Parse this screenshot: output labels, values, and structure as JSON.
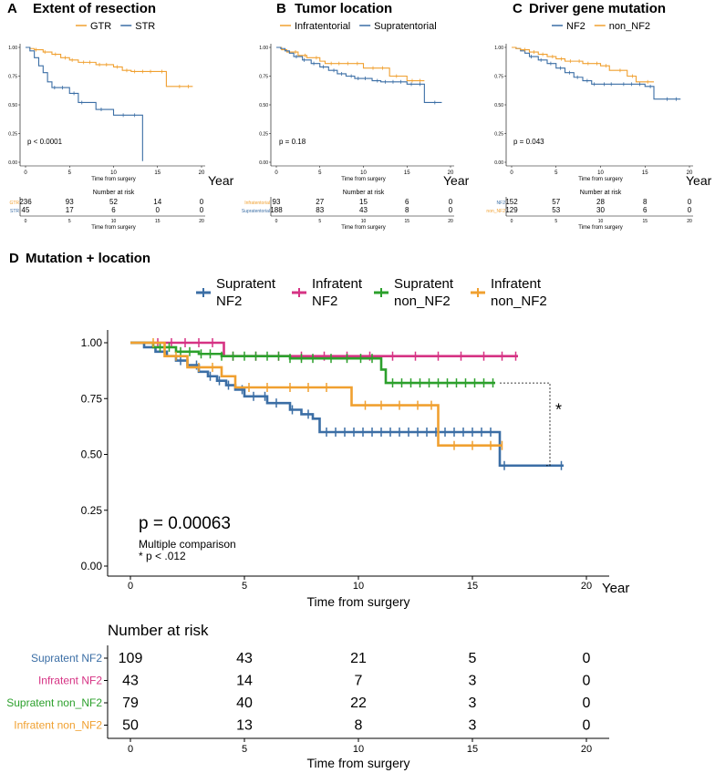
{
  "colors": {
    "blue": "#3b6ea5",
    "orange": "#f0a030",
    "pink": "#d63384",
    "green": "#2ca02c",
    "grid": "#000000"
  },
  "chart_data": [
    {
      "id": "A",
      "type": "line",
      "panel_letter": "A",
      "title": "Extent of resection",
      "xlabel": "Time from surgery",
      "x_unit": "Year",
      "ylabel": "",
      "xlim": [
        0,
        20
      ],
      "ylim": [
        0,
        1
      ],
      "xticks": [
        "0",
        "5",
        "10",
        "15",
        "20"
      ],
      "yticks": [
        "0.00",
        "0.25",
        "0.50",
        "0.75",
        "1.00"
      ],
      "pvalue": "p < 0.0001",
      "legend": [
        "GTR",
        "STR"
      ],
      "series": [
        {
          "name": "GTR",
          "color": "#f0a030",
          "steps": [
            [
              0,
              1
            ],
            [
              0.5,
              0.99
            ],
            [
              1,
              0.98
            ],
            [
              2,
              0.96
            ],
            [
              3,
              0.94
            ],
            [
              4,
              0.91
            ],
            [
              5,
              0.89
            ],
            [
              6,
              0.87
            ],
            [
              8,
              0.85
            ],
            [
              10,
              0.83
            ],
            [
              11,
              0.8
            ],
            [
              12,
              0.79
            ],
            [
              16,
              0.66
            ],
            [
              19,
              0.66
            ]
          ],
          "censors": [
            1.2,
            2.2,
            3.4,
            4.5,
            5.3,
            6.6,
            7.3,
            8.4,
            9.2,
            10.4,
            11.5,
            12.4,
            13.3,
            14.2,
            15.5,
            17.5,
            18.5
          ]
        },
        {
          "name": "STR",
          "color": "#3b6ea5",
          "steps": [
            [
              0,
              1
            ],
            [
              0.5,
              0.97
            ],
            [
              1,
              0.91
            ],
            [
              1.5,
              0.84
            ],
            [
              2,
              0.78
            ],
            [
              2.5,
              0.7
            ],
            [
              3,
              0.65
            ],
            [
              5,
              0.6
            ],
            [
              6,
              0.52
            ],
            [
              8,
              0.46
            ],
            [
              10,
              0.41
            ],
            [
              13.3,
              0.01
            ]
          ],
          "censors": [
            3.3,
            4.2,
            5.5,
            6.4,
            8.6,
            11.1,
            12.4
          ]
        }
      ],
      "risk_title": "Number at risk",
      "risk_xlabel": "Time from surgery",
      "risk_table": [
        {
          "label": "GTR",
          "color": "#f0a030",
          "values": [
            "236",
            "93",
            "52",
            "14",
            "0"
          ]
        },
        {
          "label": "STR",
          "color": "#3b6ea5",
          "values": [
            "45",
            "17",
            "6",
            "0",
            "0"
          ]
        }
      ]
    },
    {
      "id": "B",
      "type": "line",
      "panel_letter": "B",
      "title": "Tumor location",
      "xlabel": "Time from surgery",
      "x_unit": "Year",
      "ylabel": "",
      "xlim": [
        0,
        20
      ],
      "ylim": [
        0,
        1
      ],
      "xticks": [
        "0",
        "5",
        "10",
        "15",
        "20"
      ],
      "yticks": [
        "0.00",
        "0.25",
        "0.50",
        "0.75",
        "1.00"
      ],
      "pvalue": "p = 0.18",
      "legend": [
        "Infratentorial",
        "Supratentorial"
      ],
      "series": [
        {
          "name": "Infratentorial",
          "color": "#f0a030",
          "steps": [
            [
              0,
              1
            ],
            [
              0.6,
              0.98
            ],
            [
              1.2,
              0.96
            ],
            [
              2.5,
              0.93
            ],
            [
              3.5,
              0.91
            ],
            [
              5,
              0.88
            ],
            [
              5.6,
              0.86
            ],
            [
              10,
              0.82
            ],
            [
              13,
              0.75
            ],
            [
              15,
              0.71
            ],
            [
              17,
              0.71
            ]
          ],
          "censors": [
            2.2,
            3.3,
            4.6,
            6.3,
            7.2,
            8.2,
            9.3,
            11.1,
            12.2,
            13.8,
            15.6,
            16.5
          ]
        },
        {
          "name": "Supratentorial",
          "color": "#3b6ea5",
          "steps": [
            [
              0,
              1
            ],
            [
              0.5,
              0.99
            ],
            [
              1,
              0.97
            ],
            [
              1.5,
              0.95
            ],
            [
              2,
              0.92
            ],
            [
              3,
              0.89
            ],
            [
              4,
              0.86
            ],
            [
              5,
              0.83
            ],
            [
              6,
              0.8
            ],
            [
              7,
              0.77
            ],
            [
              8,
              0.75
            ],
            [
              9,
              0.73
            ],
            [
              11,
              0.71
            ],
            [
              12,
              0.7
            ],
            [
              15,
              0.68
            ],
            [
              17,
              0.52
            ],
            [
              19,
              0.52
            ]
          ],
          "censors": [
            2.3,
            3.2,
            4.3,
            5.4,
            6.6,
            7.5,
            8.6,
            9.4,
            10.2,
            11.6,
            12.5,
            13.4,
            14.3,
            15.5,
            16.5,
            18.2
          ]
        }
      ],
      "risk_title": "Number at risk",
      "risk_xlabel": "Time from surgery",
      "risk_table": [
        {
          "label": "Infratentorial",
          "color": "#f0a030",
          "values": [
            "93",
            "27",
            "15",
            "6",
            "0"
          ]
        },
        {
          "label": "Supratentorial",
          "color": "#3b6ea5",
          "values": [
            "188",
            "83",
            "43",
            "8",
            "0"
          ]
        }
      ]
    },
    {
      "id": "C",
      "type": "line",
      "panel_letter": "C",
      "title": "Driver gene mutation",
      "xlabel": "Time from surgery",
      "x_unit": "Year",
      "ylabel": "",
      "xlim": [
        0,
        20
      ],
      "ylim": [
        0,
        1
      ],
      "xticks": [
        "0",
        "5",
        "10",
        "15",
        "20"
      ],
      "yticks": [
        "0.00",
        "0.25",
        "0.50",
        "0.75",
        "1.00"
      ],
      "pvalue": "p = 0.043",
      "legend": [
        "NF2",
        "non_NF2"
      ],
      "series": [
        {
          "name": "NF2",
          "color": "#3b6ea5",
          "steps": [
            [
              0,
              1
            ],
            [
              0.5,
              0.99
            ],
            [
              1,
              0.97
            ],
            [
              1.5,
              0.95
            ],
            [
              2,
              0.92
            ],
            [
              3,
              0.89
            ],
            [
              4,
              0.86
            ],
            [
              5,
              0.82
            ],
            [
              6,
              0.78
            ],
            [
              7,
              0.74
            ],
            [
              8,
              0.71
            ],
            [
              9,
              0.68
            ],
            [
              15,
              0.66
            ],
            [
              16,
              0.55
            ],
            [
              19,
              0.55
            ]
          ],
          "censors": [
            2.2,
            3.3,
            4.4,
            5.5,
            6.5,
            7.4,
            8.5,
            9.3,
            10.4,
            11.2,
            12.6,
            13.5,
            14.4,
            15.6,
            17.5,
            18.5
          ]
        },
        {
          "name": "non_NF2",
          "color": "#f0a030",
          "steps": [
            [
              0,
              1
            ],
            [
              0.5,
              0.99
            ],
            [
              1,
              0.98
            ],
            [
              2,
              0.96
            ],
            [
              3,
              0.94
            ],
            [
              4,
              0.92
            ],
            [
              5,
              0.9
            ],
            [
              6,
              0.88
            ],
            [
              8,
              0.86
            ],
            [
              10,
              0.84
            ],
            [
              11,
              0.8
            ],
            [
              13,
              0.75
            ],
            [
              14,
              0.7
            ],
            [
              16,
              0.7
            ]
          ],
          "censors": [
            1.5,
            2.5,
            3.5,
            4.6,
            5.6,
            6.6,
            7.6,
            8.6,
            9.6,
            10.6,
            12.2,
            13.6,
            15.3
          ]
        }
      ],
      "risk_title": "Number at risk",
      "risk_xlabel": "Time from surgery",
      "risk_table": [
        {
          "label": "NF2",
          "color": "#3b6ea5",
          "values": [
            "152",
            "57",
            "28",
            "8",
            "0"
          ]
        },
        {
          "label": "non_NF2",
          "color": "#f0a030",
          "values": [
            "129",
            "53",
            "30",
            "6",
            "0"
          ]
        }
      ]
    },
    {
      "id": "D",
      "type": "line",
      "panel_letter": "D",
      "title": "Mutation + location",
      "xlabel": "Time from surgery",
      "x_unit": "Year",
      "ylabel": "",
      "xlim": [
        0,
        20
      ],
      "ylim": [
        0,
        1
      ],
      "xticks": [
        "0",
        "5",
        "10",
        "15",
        "20"
      ],
      "yticks": [
        "0.00",
        "0.25",
        "0.50",
        "0.75",
        "1.00"
      ],
      "pvalue": "p = 0.00063",
      "note_title": "Multiple comparison",
      "note_detail": "* p < .012",
      "significance_marker": "*",
      "legend": [
        "Supratent NF2",
        "Infratent NF2",
        "Supratent non_NF2",
        "Infratent non_NF2"
      ],
      "series": [
        {
          "name": "Supratent NF2",
          "legend_line1": "Supratent",
          "legend_line2": "NF2",
          "color": "#3b6ea5",
          "steps": [
            [
              0,
              1
            ],
            [
              0.6,
              0.98
            ],
            [
              1.1,
              0.96
            ],
            [
              1.6,
              0.94
            ],
            [
              2,
              0.92
            ],
            [
              2.5,
              0.9
            ],
            [
              3,
              0.87
            ],
            [
              3.4,
              0.85
            ],
            [
              3.8,
              0.83
            ],
            [
              4.2,
              0.81
            ],
            [
              4.6,
              0.79
            ],
            [
              5,
              0.76
            ],
            [
              6,
              0.73
            ],
            [
              7,
              0.7
            ],
            [
              7.5,
              0.68
            ],
            [
              8,
              0.66
            ],
            [
              8.3,
              0.6
            ],
            [
              16.2,
              0.45
            ],
            [
              19,
              0.45
            ]
          ],
          "censors": [
            1.5,
            2.2,
            2.9,
            3.5,
            3.9,
            4.3,
            4.9,
            5.4,
            5.9,
            6.4,
            7.1,
            7.8,
            8.6,
            9.0,
            9.4,
            9.8,
            10.2,
            10.6,
            11.0,
            11.4,
            11.8,
            12.2,
            12.6,
            13.0,
            13.4,
            13.8,
            14.2,
            14.6,
            15.0,
            15.4,
            15.8,
            16.4,
            18.9
          ]
        },
        {
          "name": "Infratent NF2",
          "legend_line1": "Infratent",
          "legend_line2": "NF2",
          "color": "#d63384",
          "steps": [
            [
              0,
              1
            ],
            [
              4.1,
              0.94
            ],
            [
              17,
              0.94
            ]
          ],
          "censors": [
            1.2,
            1.8,
            2.4,
            3.0,
            3.6,
            4.5,
            5.5,
            6.5,
            7.5,
            8.5,
            9.5,
            10.5,
            11.5,
            12.5,
            13.5,
            14.5,
            15.5,
            16.3,
            16.9
          ]
        },
        {
          "name": "Supratent non_NF2",
          "legend_line1": "Supratent",
          "legend_line2": "non_NF2",
          "color": "#2ca02c",
          "steps": [
            [
              0,
              1
            ],
            [
              1,
              0.98
            ],
            [
              2,
              0.96
            ],
            [
              3,
              0.95
            ],
            [
              4,
              0.94
            ],
            [
              7,
              0.93
            ],
            [
              8.5,
              0.93
            ],
            [
              11,
              0.88
            ],
            [
              11.2,
              0.82
            ],
            [
              16,
              0.82
            ]
          ],
          "censors": [
            1.3,
            1.7,
            2.2,
            2.6,
            3.1,
            3.5,
            4.0,
            4.5,
            5.0,
            5.5,
            6.0,
            6.5,
            7.0,
            7.5,
            8.0,
            8.8,
            9.5,
            10.1,
            10.6,
            11.5,
            11.9,
            12.3,
            12.7,
            13.1,
            13.5,
            13.9,
            14.3,
            14.7,
            15.1,
            15.5,
            15.9
          ]
        },
        {
          "name": "Infratent non_NF2",
          "legend_line1": "Infratent",
          "legend_line2": "non_NF2",
          "color": "#f0a030",
          "steps": [
            [
              0,
              1
            ],
            [
              1.5,
              0.94
            ],
            [
              2.5,
              0.89
            ],
            [
              4,
              0.85
            ],
            [
              4.6,
              0.8
            ],
            [
              9.7,
              0.72
            ],
            [
              13.5,
              0.54
            ],
            [
              16.3,
              0.54
            ]
          ],
          "censors": [
            1.0,
            2.0,
            3.0,
            3.6,
            5.2,
            6.0,
            7.0,
            7.8,
            8.6,
            10.3,
            11.0,
            11.8,
            12.6,
            13.2,
            14.2,
            15.0,
            15.8,
            16.3
          ]
        }
      ],
      "risk_title": "Number at risk",
      "risk_xlabel": "Time from surgery",
      "risk_table": [
        {
          "label": "Supratent NF2",
          "color": "#3b6ea5",
          "values": [
            "109",
            "43",
            "21",
            "5",
            "0"
          ]
        },
        {
          "label": "Infratent NF2",
          "color": "#d63384",
          "values": [
            "43",
            "14",
            "7",
            "3",
            "0"
          ]
        },
        {
          "label": "Supratent non_NF2",
          "color": "#2ca02c",
          "values": [
            "79",
            "40",
            "22",
            "3",
            "0"
          ]
        },
        {
          "label": "Infratent non_NF2",
          "color": "#f0a030",
          "values": [
            "50",
            "13",
            "8",
            "3",
            "0"
          ]
        }
      ]
    }
  ]
}
